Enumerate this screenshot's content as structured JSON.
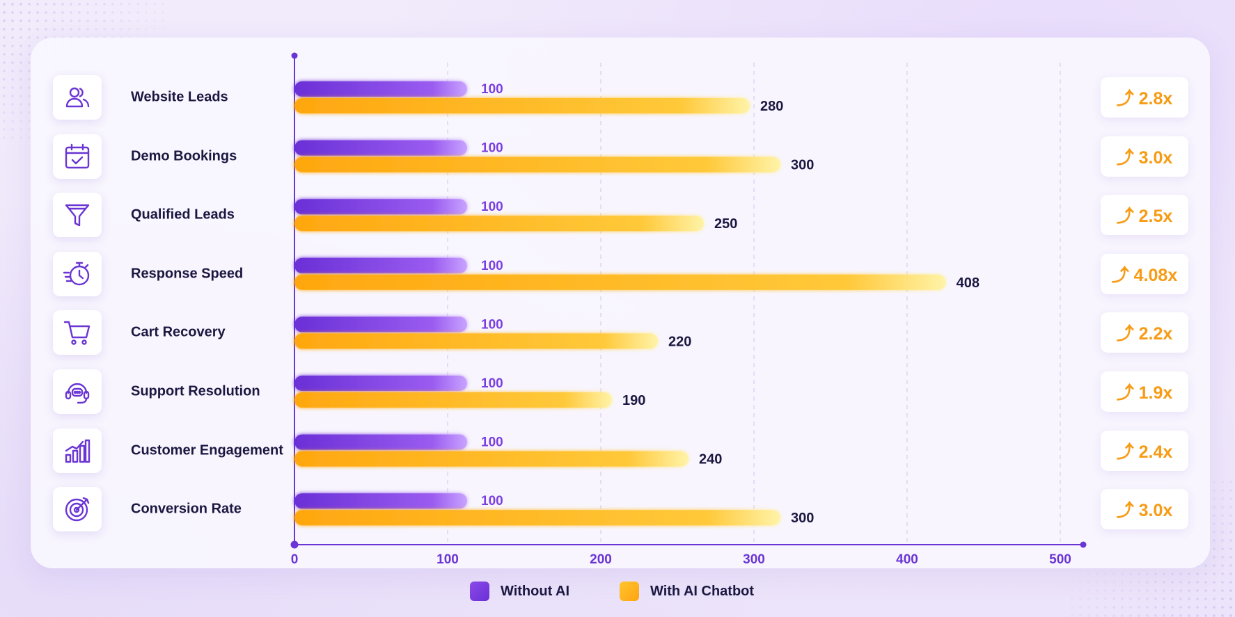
{
  "colors": {
    "without_ai": "#7b3fe4",
    "with_ai": "#ffb320",
    "axis": "#6a35d4",
    "badge_text": "#f79b14",
    "label_text": "#1b1740"
  },
  "categories": [
    {
      "label": "Website Leads",
      "icon": "users-icon",
      "badge": "⤴ 2.8x"
    },
    {
      "label": "Demo Bookings",
      "icon": "calendar-check-icon",
      "badge": "⤴ 3.0x"
    },
    {
      "label": "Qualified Leads",
      "icon": "funnel-icon",
      "badge": "⤴ 2.5x"
    },
    {
      "label": "Response Speed",
      "icon": "stopwatch-icon",
      "badge": "⤴ 4.08x"
    },
    {
      "label": "Cart Recovery",
      "icon": "shopping-cart-icon",
      "badge": "⤴ 2.2x"
    },
    {
      "label": "Support Resolution",
      "icon": "headset-icon",
      "badge": "⤴ 1.9x"
    },
    {
      "label": "Customer Engagement",
      "icon": "bar-growth-icon",
      "badge": "⤴ 2.4x"
    },
    {
      "label": "Conversion Rate",
      "icon": "target-icon",
      "badge": "⤴ 3.0x"
    }
  ],
  "legend": {
    "without_ai": "Without AI",
    "with_ai": "With AI Chatbot"
  },
  "chart_data": {
    "type": "bar",
    "orientation": "horizontal",
    "categories": [
      "Website Leads",
      "Demo Bookings",
      "Qualified Leads",
      "Response Speed",
      "Cart Recovery",
      "Support Resolution",
      "Customer Engagement",
      "Conversion Rate"
    ],
    "series": [
      {
        "name": "Without AI",
        "values": [
          100,
          100,
          100,
          100,
          100,
          100,
          100,
          100
        ]
      },
      {
        "name": "With AI Chatbot",
        "values": [
          280,
          300,
          250,
          408,
          220,
          190,
          240,
          300
        ]
      }
    ],
    "value_labels": {
      "Without AI": [
        "100",
        "100",
        "100",
        "100",
        "100",
        "100",
        "100",
        "100"
      ],
      "With AI Chatbot": [
        "280",
        "300",
        "250",
        "408",
        "220",
        "190",
        "240",
        "300"
      ]
    },
    "xlim": [
      0,
      500
    ],
    "xticks": [
      0,
      100,
      200,
      300,
      400,
      500
    ],
    "xtick_labels": [
      "0",
      "100",
      "200",
      "300",
      "400",
      "500"
    ],
    "grid": "vertical dashed",
    "legend_position": "bottom-center",
    "title": "",
    "xlabel": "",
    "ylabel": ""
  }
}
